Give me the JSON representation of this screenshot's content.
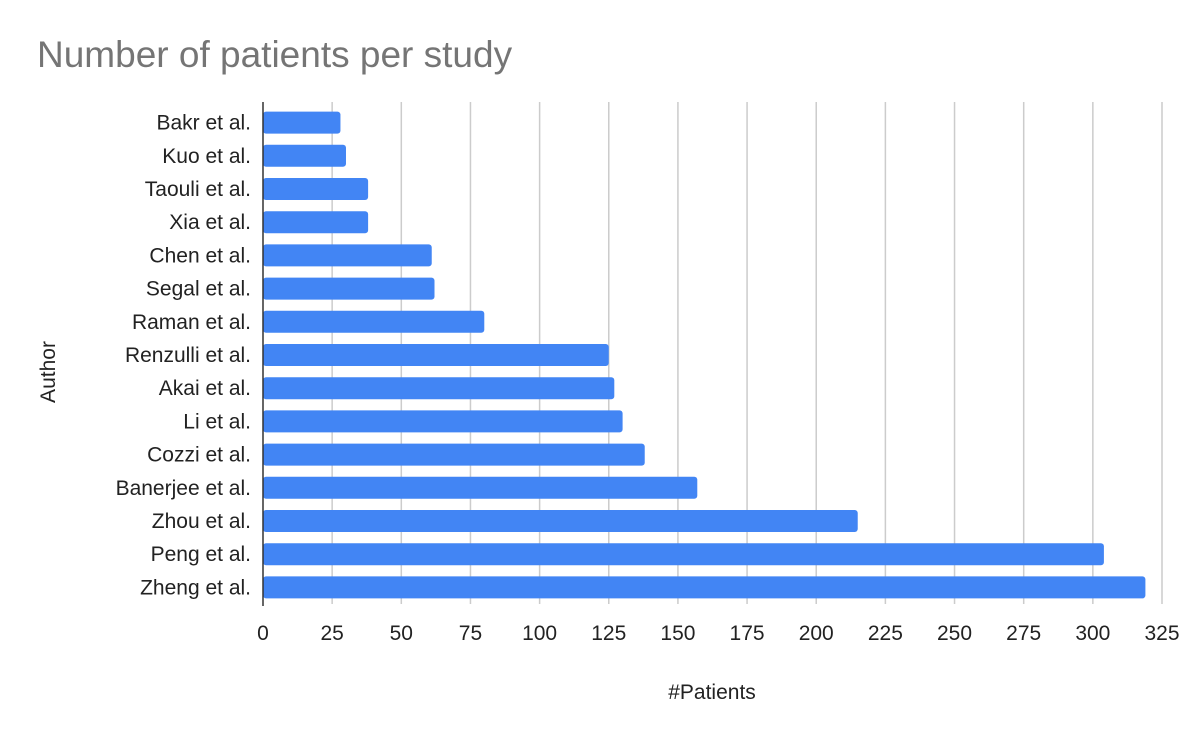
{
  "chart_data": {
    "type": "bar",
    "orientation": "horizontal",
    "title": "Number of patients per study",
    "xlabel": "#Patients",
    "ylabel": "Author",
    "xlim": [
      0,
      325
    ],
    "xticks": [
      0,
      25,
      50,
      75,
      100,
      125,
      150,
      175,
      200,
      225,
      250,
      275,
      300,
      325
    ],
    "grid": true,
    "legend": "none",
    "bar_color": "#4285f4",
    "categories": [
      "Bakr et al.",
      "Kuo et al.",
      "Taouli et al.",
      "Xia et al.",
      "Chen et al.",
      "Segal et al.",
      "Raman et al.",
      "Renzulli et al.",
      "Akai et al.",
      "Li et al.",
      "Cozzi et al.",
      "Banerjee et al.",
      "Zhou et al.",
      "Peng et al.",
      "Zheng et al."
    ],
    "values": [
      28,
      30,
      38,
      38,
      61,
      62,
      80,
      125,
      127,
      130,
      138,
      157,
      215,
      304,
      319
    ]
  }
}
